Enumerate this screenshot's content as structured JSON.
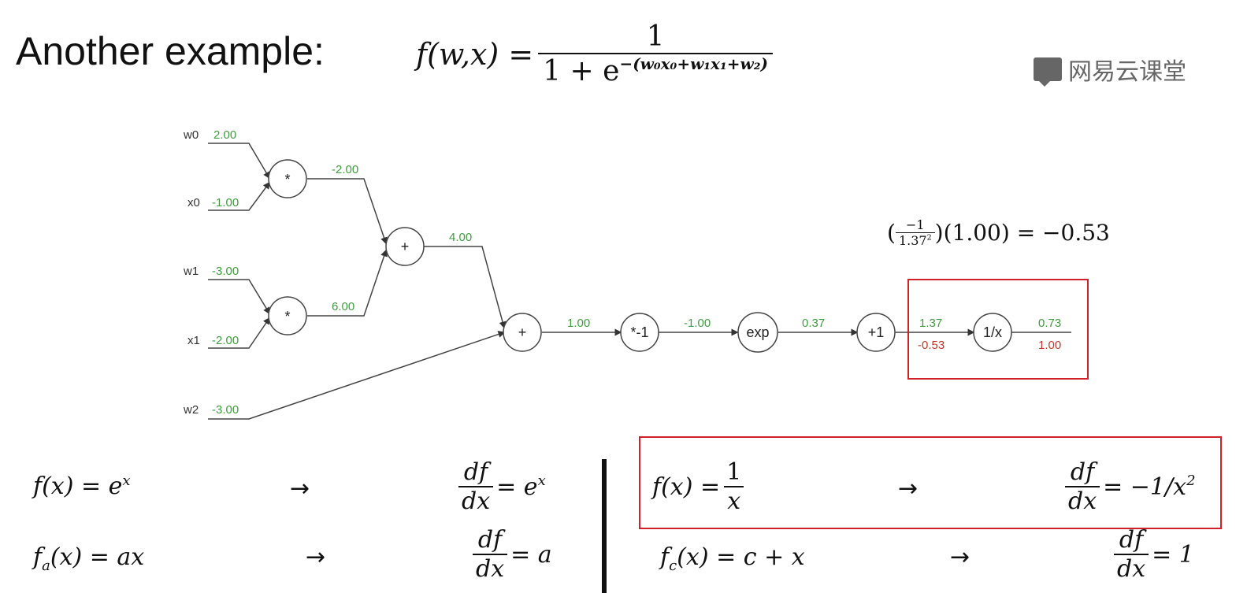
{
  "title": "Another example:",
  "header_formula": {
    "lhs": "f(w,x) = ",
    "numerator": "1",
    "den_base": "1 + e",
    "den_exp": "−(w₀x₀+w₁x₁+w₂)"
  },
  "logo": {
    "text": "网易云课堂",
    "icon": "chat-bubble-icon"
  },
  "colors": {
    "forward": "#3f9c3f",
    "gradient": "#c0392b",
    "highlight": "#d0202a",
    "line": "#555555"
  },
  "graph": {
    "inputs": [
      {
        "name": "w0",
        "value": "2.00"
      },
      {
        "name": "x0",
        "value": "-1.00"
      },
      {
        "name": "w1",
        "value": "-3.00"
      },
      {
        "name": "x1",
        "value": "-2.00"
      },
      {
        "name": "w2",
        "value": "-3.00"
      }
    ],
    "nodes": [
      {
        "id": "mul0",
        "label": "*"
      },
      {
        "id": "mul1",
        "label": "*"
      },
      {
        "id": "add0",
        "label": "+"
      },
      {
        "id": "add1",
        "label": "+"
      },
      {
        "id": "neg",
        "label": "*-1"
      },
      {
        "id": "exp",
        "label": "exp"
      },
      {
        "id": "plus1",
        "label": "+1"
      },
      {
        "id": "recip",
        "label": "1/x"
      }
    ],
    "edge_values": {
      "mul0_out": "-2.00",
      "mul1_out": "6.00",
      "add0_out": "4.00",
      "add1_out": "1.00",
      "neg_out": "-1.00",
      "exp_out": "0.37",
      "plus1_out": "1.37",
      "plus1_out_grad": "-0.53",
      "recip_out": "0.73",
      "recip_out_grad": "1.00"
    },
    "annotation": {
      "open": "(",
      "num": "−1",
      "den_base": "1.37",
      "den_exp": "2",
      "rest": ")(1.00) = −0.53"
    }
  },
  "rules": [
    {
      "id": "exp",
      "f_lhs": "f(x) = e",
      "f_exp": "x",
      "arrow": "→",
      "d_num": "df",
      "d_den": "dx",
      "d_rhs": "= e",
      "d_exp": "x"
    },
    {
      "id": "scale",
      "f_lhs": "f",
      "f_sub": "a",
      "f_rhs": "(x) = ax",
      "arrow": "→",
      "d_num": "df",
      "d_den": "dx",
      "d_rhs": "= a"
    },
    {
      "id": "recip",
      "f_lhs": "f(x) = ",
      "f_num": "1",
      "f_den": "x",
      "arrow": "→",
      "d_num": "df",
      "d_den": "dx",
      "d_rhs": "= −1/x",
      "d_exp": "2"
    },
    {
      "id": "const",
      "f_lhs": "f",
      "f_sub": "c",
      "f_rhs": "(x) = c + x",
      "arrow": "→",
      "d_num": "df",
      "d_den": "dx",
      "d_rhs": "= 1"
    }
  ]
}
